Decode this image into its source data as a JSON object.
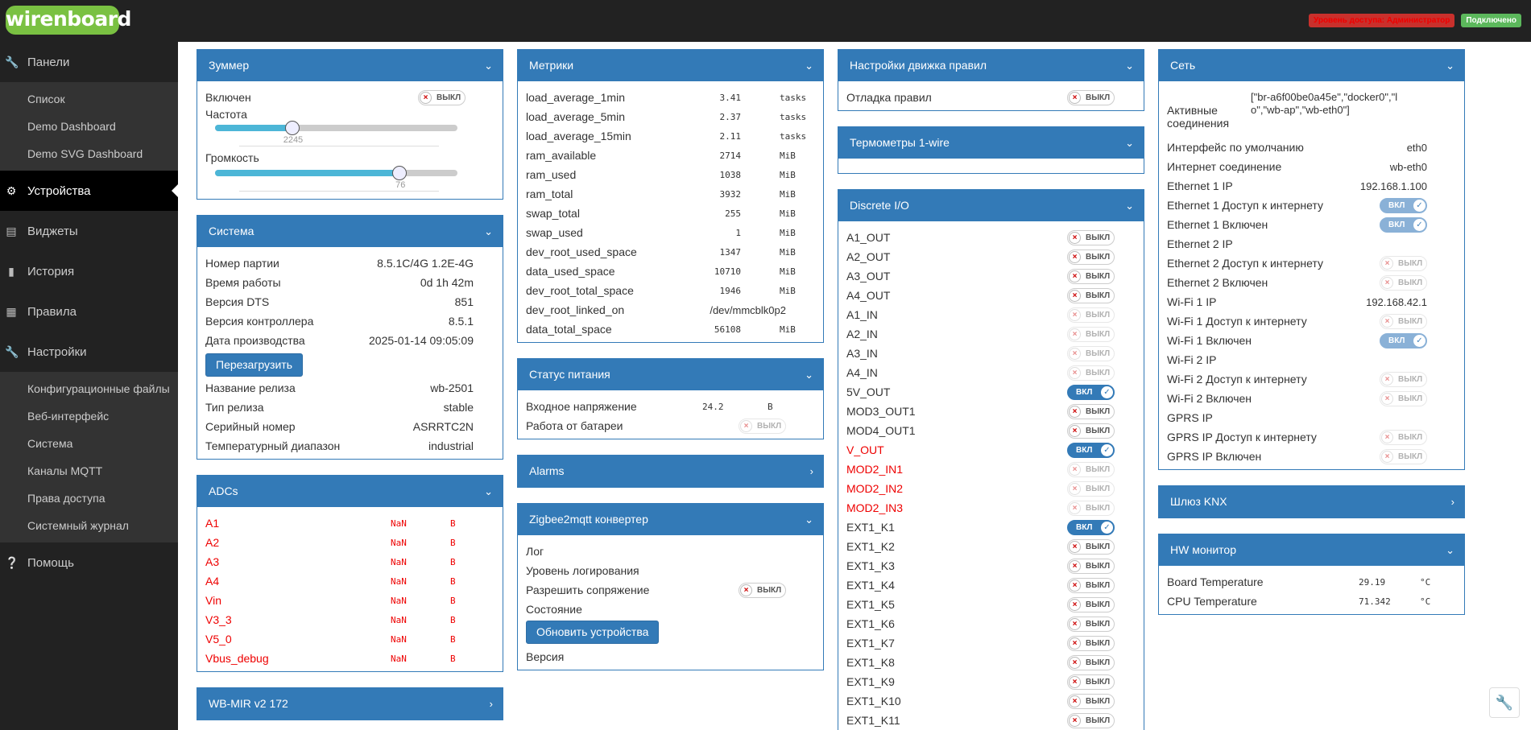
{
  "header": {
    "logo": "wirenboard",
    "access_badge": "Уровень доступа: Администратор",
    "status_badge": "Подключено"
  },
  "sidebar": {
    "items": [
      {
        "label": "Панели",
        "icon": "wrench-icon"
      },
      {
        "label": "Устройства",
        "icon": "gear-icon"
      },
      {
        "label": "Виджеты",
        "icon": "widgets-icon"
      },
      {
        "label": "История",
        "icon": "chart-icon"
      },
      {
        "label": "Правила",
        "icon": "document-icon"
      },
      {
        "label": "Настройки",
        "icon": "wrench-icon"
      },
      {
        "label": "Помощь",
        "icon": "help-icon"
      }
    ],
    "panels_sub": [
      "Список",
      "Demo Dashboard",
      "Demo SVG Dashboard"
    ],
    "settings_sub": [
      "Конфигурационные файлы",
      "Веб-интерфейс",
      "Система",
      "Каналы MQTT",
      "Права доступа",
      "Системный журнал"
    ]
  },
  "buzzer": {
    "title": "Зуммер",
    "enabled_label": "Включен",
    "enabled_toggle": "ВЫКЛ",
    "freq_label": "Частота",
    "freq_value": "2245",
    "freq_fraction": 0.32,
    "volume_label": "Громкость",
    "volume_value": "76",
    "volume_fraction": 0.76
  },
  "system": {
    "title": "Система",
    "rows1": [
      {
        "label": "Номер партии",
        "value": "8.5.1C/4G 1.2E-4G"
      },
      {
        "label": "Время работы",
        "value": "0d 1h 42m"
      },
      {
        "label": "Версия DTS",
        "value": "851"
      },
      {
        "label": "Версия контроллера",
        "value": "8.5.1"
      },
      {
        "label": "Дата производства",
        "value": "2025-01-14 09:05:09"
      }
    ],
    "reboot_button": "Перезагрузить",
    "rows2": [
      {
        "label": "Название релиза",
        "value": "wb-2501"
      },
      {
        "label": "Тип релиза",
        "value": "stable"
      },
      {
        "label": "Серийный номер",
        "value": "ASRRTC2N"
      },
      {
        "label": "Температурный диапазон",
        "value": "industrial"
      }
    ]
  },
  "adcs": {
    "title": "ADCs",
    "rows": [
      {
        "label": "A1",
        "value": "NaN",
        "unit": "В"
      },
      {
        "label": "A2",
        "value": "NaN",
        "unit": "В"
      },
      {
        "label": "A3",
        "value": "NaN",
        "unit": "В"
      },
      {
        "label": "A4",
        "value": "NaN",
        "unit": "В"
      },
      {
        "label": "Vin",
        "value": "NaN",
        "unit": "В"
      },
      {
        "label": "V3_3",
        "value": "NaN",
        "unit": "В"
      },
      {
        "label": "V5_0",
        "value": "NaN",
        "unit": "В"
      },
      {
        "label": "Vbus_debug",
        "value": "NaN",
        "unit": "В"
      }
    ]
  },
  "wbmir": {
    "title": "WB-MIR v2 172"
  },
  "metrics": {
    "title": "Метрики",
    "rows": [
      {
        "label": "load_average_1min",
        "value": "3.41",
        "unit": "tasks"
      },
      {
        "label": "load_average_5min",
        "value": "2.37",
        "unit": "tasks"
      },
      {
        "label": "load_average_15min",
        "value": "2.11",
        "unit": "tasks"
      },
      {
        "label": "ram_available",
        "value": "2714",
        "unit": "MiB"
      },
      {
        "label": "ram_used",
        "value": "1038",
        "unit": "MiB"
      },
      {
        "label": "ram_total",
        "value": "3932",
        "unit": "MiB"
      },
      {
        "label": "swap_total",
        "value": "255",
        "unit": "MiB"
      },
      {
        "label": "swap_used",
        "value": "1",
        "unit": "MiB"
      },
      {
        "label": "dev_root_used_space",
        "value": "1347",
        "unit": "MiB"
      },
      {
        "label": "data_used_space",
        "value": "10710",
        "unit": "MiB"
      },
      {
        "label": "dev_root_total_space",
        "value": "1946",
        "unit": "MiB"
      },
      {
        "label": "dev_root_linked_on",
        "value": "/dev/mmcblk0p2",
        "unit": ""
      },
      {
        "label": "data_total_space",
        "value": "56108",
        "unit": "MiB"
      }
    ]
  },
  "power": {
    "title": "Статус питания",
    "voltage_label": "Входное напряжение",
    "voltage_value": "24.2",
    "voltage_unit": "В",
    "battery_label": "Работа от батареи",
    "battery_toggle": "ВЫКЛ"
  },
  "alarms": {
    "title": "Alarms"
  },
  "zigbee": {
    "title": "Zigbee2mqtt конвертер",
    "log_label": "Лог",
    "loglevel_label": "Уровень логирования",
    "pairing_label": "Разрешить сопряжение",
    "pairing_toggle": "ВЫКЛ",
    "state_label": "Состояние",
    "update_button": "Обновить устройства",
    "version_label": "Версия"
  },
  "rules_engine": {
    "title": "Настройки движка правил",
    "debug_label": "Отладка правил",
    "debug_toggle": "ВЫКЛ"
  },
  "onewire": {
    "title": "Термометры 1-wire"
  },
  "discrete": {
    "title": "Discrete I/O",
    "rows": [
      {
        "label": "A1_OUT",
        "state": "ВЫКЛ",
        "on": false,
        "disabled": false,
        "red": false
      },
      {
        "label": "A2_OUT",
        "state": "ВЫКЛ",
        "on": false,
        "disabled": false,
        "red": false
      },
      {
        "label": "A3_OUT",
        "state": "ВЫКЛ",
        "on": false,
        "disabled": false,
        "red": false
      },
      {
        "label": "A4_OUT",
        "state": "ВЫКЛ",
        "on": false,
        "disabled": false,
        "red": false
      },
      {
        "label": "A1_IN",
        "state": "ВЫКЛ",
        "on": false,
        "disabled": true,
        "red": false
      },
      {
        "label": "A2_IN",
        "state": "ВЫКЛ",
        "on": false,
        "disabled": true,
        "red": false
      },
      {
        "label": "A3_IN",
        "state": "ВЫКЛ",
        "on": false,
        "disabled": true,
        "red": false
      },
      {
        "label": "A4_IN",
        "state": "ВЫКЛ",
        "on": false,
        "disabled": true,
        "red": false
      },
      {
        "label": "5V_OUT",
        "state": "ВКЛ",
        "on": true,
        "disabled": false,
        "red": false
      },
      {
        "label": "MOD3_OUT1",
        "state": "ВЫКЛ",
        "on": false,
        "disabled": false,
        "red": false
      },
      {
        "label": "MOD4_OUT1",
        "state": "ВЫКЛ",
        "on": false,
        "disabled": false,
        "red": false
      },
      {
        "label": "V_OUT",
        "state": "ВКЛ",
        "on": true,
        "disabled": false,
        "red": true
      },
      {
        "label": "MOD2_IN1",
        "state": "ВЫКЛ",
        "on": false,
        "disabled": true,
        "red": true
      },
      {
        "label": "MOD2_IN2",
        "state": "ВЫКЛ",
        "on": false,
        "disabled": true,
        "red": true
      },
      {
        "label": "MOD2_IN3",
        "state": "ВЫКЛ",
        "on": false,
        "disabled": true,
        "red": true
      },
      {
        "label": "EXT1_K1",
        "state": "ВКЛ",
        "on": true,
        "disabled": false,
        "red": false
      },
      {
        "label": "EXT1_K2",
        "state": "ВЫКЛ",
        "on": false,
        "disabled": false,
        "red": false
      },
      {
        "label": "EXT1_K3",
        "state": "ВЫКЛ",
        "on": false,
        "disabled": false,
        "red": false
      },
      {
        "label": "EXT1_K4",
        "state": "ВЫКЛ",
        "on": false,
        "disabled": false,
        "red": false
      },
      {
        "label": "EXT1_K5",
        "state": "ВЫКЛ",
        "on": false,
        "disabled": false,
        "red": false
      },
      {
        "label": "EXT1_K6",
        "state": "ВЫКЛ",
        "on": false,
        "disabled": false,
        "red": false
      },
      {
        "label": "EXT1_K7",
        "state": "ВЫКЛ",
        "on": false,
        "disabled": false,
        "red": false
      },
      {
        "label": "EXT1_K8",
        "state": "ВЫКЛ",
        "on": false,
        "disabled": false,
        "red": false
      },
      {
        "label": "EXT1_K9",
        "state": "ВЫКЛ",
        "on": false,
        "disabled": false,
        "red": false
      },
      {
        "label": "EXT1_K10",
        "state": "ВЫКЛ",
        "on": false,
        "disabled": false,
        "red": false
      },
      {
        "label": "EXT1_K11",
        "state": "ВЫКЛ",
        "on": false,
        "disabled": false,
        "red": false
      }
    ]
  },
  "network": {
    "title": "Сеть",
    "active_label": "Активные соединения",
    "active_value": "[\"br-a6f00be0a45e\",\"docker0\",\"lo\",\"wb-ap\",\"wb-eth0\"]",
    "rows": [
      {
        "label": "Интерфейс по умолчанию",
        "value": "eth0",
        "type": "text"
      },
      {
        "label": "Интернет соединение",
        "value": "wb-eth0",
        "type": "text"
      },
      {
        "label": "Ethernet 1 IP",
        "value": "192.168.1.100",
        "type": "text"
      },
      {
        "label": "Ethernet 1 Доступ к интернету",
        "value": "ВКЛ",
        "type": "on"
      },
      {
        "label": "Ethernet 1 Включен",
        "value": "ВКЛ",
        "type": "on"
      },
      {
        "label": "Ethernet 2 IP",
        "value": "",
        "type": "text"
      },
      {
        "label": "Ethernet 2 Доступ к интернету",
        "value": "ВЫКЛ",
        "type": "off"
      },
      {
        "label": "Ethernet 2 Включен",
        "value": "ВЫКЛ",
        "type": "off"
      },
      {
        "label": "Wi-Fi 1 IP",
        "value": "192.168.42.1",
        "type": "text"
      },
      {
        "label": "Wi-Fi 1 Доступ к интернету",
        "value": "ВЫКЛ",
        "type": "off"
      },
      {
        "label": "Wi-Fi 1 Включен",
        "value": "ВКЛ",
        "type": "on"
      },
      {
        "label": "Wi-Fi 2 IP",
        "value": "",
        "type": "text"
      },
      {
        "label": "Wi-Fi 2 Доступ к интернету",
        "value": "ВЫКЛ",
        "type": "off"
      },
      {
        "label": "Wi-Fi 2 Включен",
        "value": "ВЫКЛ",
        "type": "off"
      },
      {
        "label": "GPRS IP",
        "value": "",
        "type": "text"
      },
      {
        "label": "GPRS IP Доступ к интернету",
        "value": "ВЫКЛ",
        "type": "off"
      },
      {
        "label": "GPRS IP Включен",
        "value": "ВЫКЛ",
        "type": "off"
      }
    ]
  },
  "knx": {
    "title": "Шлюз KNX"
  },
  "hw": {
    "title": "HW монитор",
    "rows": [
      {
        "label": "Board Temperature",
        "value": "29.19",
        "unit": "°C"
      },
      {
        "label": "CPU Temperature",
        "value": "71.342",
        "unit": "°C"
      }
    ]
  }
}
